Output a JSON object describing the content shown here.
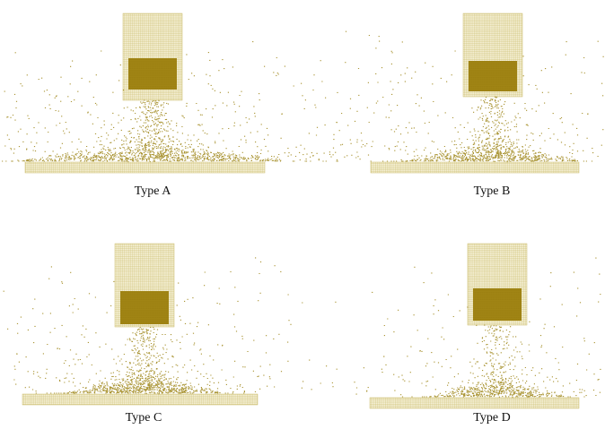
{
  "panels": [
    {
      "label": "Type A"
    },
    {
      "label": "Type B"
    },
    {
      "label": "Type C"
    },
    {
      "label": "Type D"
    }
  ]
}
